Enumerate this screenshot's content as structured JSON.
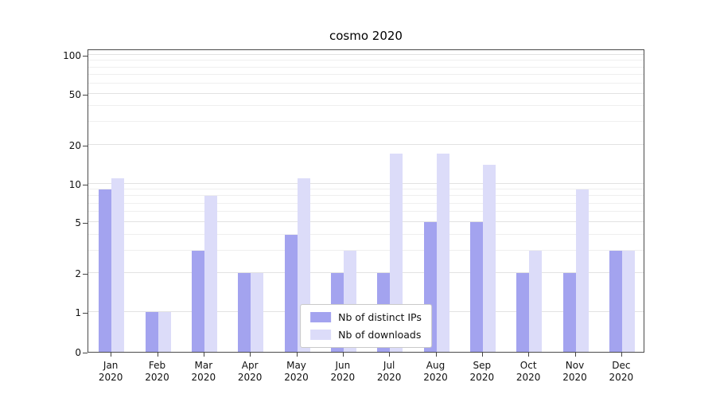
{
  "title": "cosmo 2020",
  "colors": {
    "grid_minor": "#efefef",
    "grid_major": "#e2e2e2",
    "axis": "#4a4a4a",
    "background": "#ffffff"
  },
  "axes": {
    "x_months": [
      "Jan",
      "Feb",
      "Mar",
      "Apr",
      "May",
      "Jun",
      "Jul",
      "Aug",
      "Sep",
      "Oct",
      "Nov",
      "Dec"
    ],
    "x_year": "2020"
  },
  "chart_data": {
    "type": "bar",
    "title": "cosmo 2020",
    "yscale": "symlog",
    "ylim": [
      0,
      112
    ],
    "y_ticks": [
      0,
      1,
      2,
      5,
      10,
      20,
      50,
      100
    ],
    "y_minor_ticks": [
      3,
      4,
      6,
      7,
      8,
      9,
      30,
      40,
      60,
      70,
      80,
      90
    ],
    "grid": true,
    "legend_position": "lower center",
    "categories": [
      "Jan 2020",
      "Feb 2020",
      "Mar 2020",
      "Apr 2020",
      "May 2020",
      "Jun 2020",
      "Jul 2020",
      "Aug 2020",
      "Sep 2020",
      "Oct 2020",
      "Nov 2020",
      "Dec 2020"
    ],
    "series": [
      {
        "name": "Nb of distinct IPs",
        "color": "#a3a3ef",
        "values": [
          9,
          1,
          3,
          2,
          4,
          2,
          2,
          5,
          5,
          2,
          2,
          3
        ]
      },
      {
        "name": "Nb of downloads",
        "color": "#dcdcf9",
        "values": [
          11,
          1,
          8,
          2,
          11,
          3,
          17,
          17,
          14,
          3,
          9,
          3
        ]
      }
    ]
  }
}
